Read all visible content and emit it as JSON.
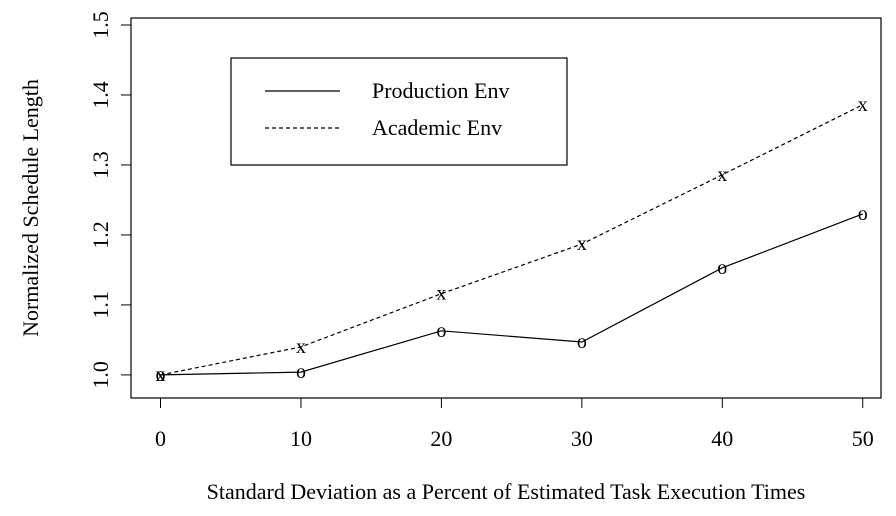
{
  "chart_data": {
    "type": "line",
    "xlabel": "Standard Deviation as a Percent of Estimated Task Execution Times",
    "ylabel": "Normalized Schedule Length",
    "x": [
      0,
      10,
      20,
      30,
      40,
      50
    ],
    "series": [
      {
        "name": "Production Env",
        "color": "#000000",
        "line_style": "solid",
        "marker": "o",
        "values": [
          1.0,
          1.004,
          1.063,
          1.047,
          1.153,
          1.23
        ]
      },
      {
        "name": "Academic Env",
        "color": "#000000",
        "line_style": "dashed",
        "marker": "x",
        "values": [
          1.0,
          1.04,
          1.116,
          1.187,
          1.286,
          1.386
        ]
      }
    ],
    "xlim": [
      -2.1,
      51.3
    ],
    "ylim": [
      0.967,
      1.51
    ],
    "xticks": [
      0,
      10,
      20,
      30,
      40,
      50
    ],
    "yticks": [
      {
        "value": 1.0,
        "label": "1.0"
      },
      1.1,
      1.2,
      1.3,
      1.4,
      1.5
    ],
    "legend": "top-left",
    "grid": false
  }
}
